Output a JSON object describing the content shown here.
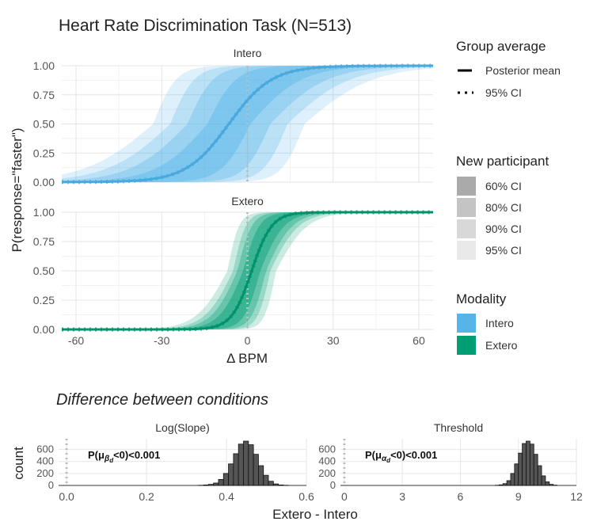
{
  "title": "Heart Rate Discrimination Task (N=513)",
  "ylabel": "P(response=\"faster\")",
  "xlabel": "Δ BPM",
  "legend": {
    "group_title": "Group average",
    "posterior_mean": "Posterior mean",
    "ci95": "95% CI",
    "participant_title": "New participant",
    "participant_items": [
      "60% CI",
      "80% CI",
      "90% CI",
      "95% CI"
    ],
    "participant_colors": [
      "#aaaaaa",
      "#c4c4c4",
      "#d8d8d8",
      "#e9e9e9"
    ],
    "modality_title": "Modality",
    "modality_items": [
      "Intero",
      "Extero"
    ],
    "modality_colors": [
      "#56b4e9",
      "#009e73"
    ]
  },
  "bottom": {
    "subtitle": "Difference between conditions",
    "xlabel": "Extero - Intero",
    "ylabel": "count"
  },
  "chart_data": [
    {
      "type": "line",
      "panel": "Intero",
      "xlim": [
        -65,
        65
      ],
      "ylim": [
        0,
        1
      ],
      "xticks": [
        -60,
        -30,
        0,
        30,
        60
      ],
      "yticks": [
        "0.00",
        "0.25",
        "0.50",
        "0.75",
        "1.00"
      ],
      "color": "#56b4e9",
      "posterior_mean": {
        "threshold": -6.5,
        "slope": 7.5
      },
      "new_participant_bands": [
        {
          "level": "60% CI",
          "threshold": [
            -14,
            1
          ],
          "slope": [
            5,
            9
          ]
        },
        {
          "level": "80% CI",
          "threshold": [
            -21,
            8
          ],
          "slope": [
            4.5,
            10
          ]
        },
        {
          "level": "90% CI",
          "threshold": [
            -27,
            14
          ],
          "slope": [
            4.2,
            11
          ]
        },
        {
          "level": "95% CI",
          "threshold": [
            -33,
            20
          ],
          "slope": [
            4,
            12
          ]
        }
      ]
    },
    {
      "type": "line",
      "panel": "Extero",
      "xlim": [
        -65,
        65
      ],
      "ylim": [
        0,
        1
      ],
      "xticks": [
        -60,
        -30,
        0,
        30,
        60
      ],
      "yticks": [
        "0.00",
        "0.25",
        "0.50",
        "0.75",
        "1.00"
      ],
      "color": "#009e73",
      "posterior_mean": {
        "threshold": 1.5,
        "slope": 3.5
      },
      "new_participant_bands": [
        {
          "level": "60% CI",
          "threshold": [
            -1.5,
            4.5
          ],
          "slope": [
            2.8,
            4.2
          ]
        },
        {
          "level": "80% CI",
          "threshold": [
            -3.5,
            6.5
          ],
          "slope": [
            2.5,
            4.6
          ]
        },
        {
          "level": "90% CI",
          "threshold": [
            -5,
            8
          ],
          "slope": [
            2.2,
            5
          ]
        },
        {
          "level": "95% CI",
          "threshold": [
            -7,
            10
          ],
          "slope": [
            2,
            5.5
          ]
        }
      ]
    },
    {
      "type": "bar",
      "panel": "Log(Slope)",
      "annotation_prefix": "P(μ",
      "annotation_sub": "β",
      "annotation_subsub": "d",
      "annotation_suffix": "<0)<0.001",
      "xlim": [
        -0.02,
        0.6
      ],
      "ylim": [
        0,
        780
      ],
      "xticks": [
        "0.0",
        "0.2",
        "0.4",
        "0.6"
      ],
      "yticks": [
        "0",
        "200",
        "400",
        "600"
      ],
      "bins_start": 0.33,
      "bin_width": 0.0125,
      "counts": [
        3,
        8,
        18,
        40,
        100,
        200,
        360,
        530,
        690,
        740,
        680,
        520,
        330,
        170,
        70,
        25,
        8,
        3
      ]
    },
    {
      "type": "bar",
      "panel": "Threshold",
      "annotation_prefix": "P(μ",
      "annotation_sub": "α",
      "annotation_subsub": "d",
      "annotation_suffix": "<0)<0.001",
      "xlim": [
        -0.2,
        12
      ],
      "ylim": [
        0,
        780
      ],
      "xticks": [
        "0",
        "3",
        "6",
        "9",
        "12"
      ],
      "yticks": [
        "0",
        "200",
        "400",
        "600"
      ],
      "bins_start": 7.8,
      "bin_width": 0.2,
      "counts": [
        3,
        10,
        30,
        80,
        200,
        360,
        540,
        700,
        740,
        690,
        520,
        330,
        160,
        60,
        18,
        5
      ]
    }
  ]
}
